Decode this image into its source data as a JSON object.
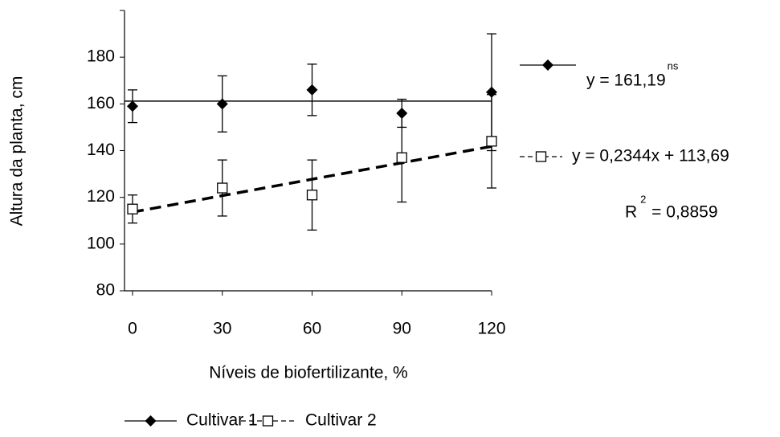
{
  "chart_data": {
    "type": "scatter",
    "x_label": "Níveis de biofertilizante, %",
    "y_label": "Altura da planta, cm",
    "xlim": [
      0,
      120
    ],
    "xticks": [
      0,
      30,
      60,
      90,
      120
    ],
    "ylim": [
      80,
      200
    ],
    "yticks": [
      80,
      100,
      120,
      140,
      160,
      180
    ],
    "x": [
      0,
      30,
      60,
      90,
      120
    ],
    "series": [
      {
        "name": "Cultivar 1",
        "color": "#000000",
        "marker": "diamond",
        "values": [
          159,
          160,
          166,
          156,
          165
        ],
        "errors": [
          7,
          12,
          11,
          6,
          25
        ],
        "trendline": {
          "slope": 0,
          "intercept": 161.19,
          "label": "y = 161,19",
          "superscript": "ns",
          "dashed": false
        }
      },
      {
        "name": "Cultivar 2",
        "color": "#000000",
        "marker": "square",
        "values": [
          115,
          124,
          121,
          137,
          144
        ],
        "errors": [
          6,
          12,
          15,
          19,
          20
        ],
        "trendline": {
          "slope": 0.2344,
          "intercept": 113.69,
          "label": "y = 0,2344x + 113,69",
          "r2_label": [
            "R",
            "2",
            "= 0,8859"
          ],
          "dashed": true
        }
      }
    ]
  }
}
